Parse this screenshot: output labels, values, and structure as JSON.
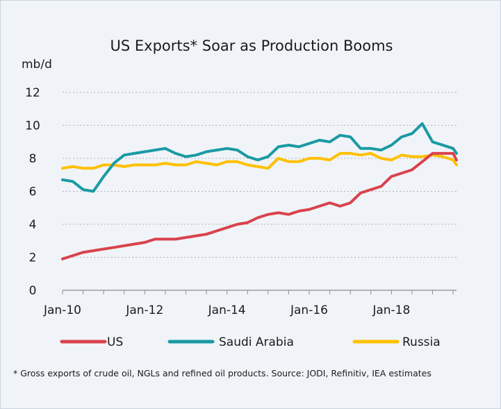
{
  "footnote": "* Gross exports of crude oil, NGLs and refined oil products. Source: JODI, Refinitiv, IEA estimates",
  "chart_data": {
    "type": "line",
    "title": "US Exports* Soar as Production Booms",
    "ylabel": "mb/d",
    "xlabel": "",
    "ylim": [
      0,
      12
    ],
    "yticks": [
      0,
      2,
      4,
      6,
      8,
      10,
      12
    ],
    "xlim": [
      "2010-01",
      "2019-08"
    ],
    "xticks": [
      "Jan-10",
      "Jan-12",
      "Jan-14",
      "Jan-16",
      "Jan-18"
    ],
    "grid": true,
    "legend": "bottom",
    "x": [
      "2010-01",
      "2010-04",
      "2010-07",
      "2010-10",
      "2011-01",
      "2011-04",
      "2011-07",
      "2011-10",
      "2012-01",
      "2012-04",
      "2012-07",
      "2012-10",
      "2013-01",
      "2013-04",
      "2013-07",
      "2013-10",
      "2014-01",
      "2014-04",
      "2014-07",
      "2014-10",
      "2015-01",
      "2015-04",
      "2015-07",
      "2015-10",
      "2016-01",
      "2016-04",
      "2016-07",
      "2016-10",
      "2017-01",
      "2017-04",
      "2017-07",
      "2017-10",
      "2018-01",
      "2018-04",
      "2018-07",
      "2018-10",
      "2019-01",
      "2019-04",
      "2019-07",
      "2019-08"
    ],
    "series": [
      {
        "name": "US",
        "color": "#d9434d",
        "values": [
          1.9,
          2.1,
          2.3,
          2.4,
          2.5,
          2.6,
          2.7,
          2.8,
          2.9,
          3.1,
          3.1,
          3.1,
          3.2,
          3.3,
          3.4,
          3.6,
          3.8,
          4.0,
          4.1,
          4.4,
          4.6,
          4.7,
          4.6,
          4.8,
          4.9,
          5.1,
          5.3,
          5.1,
          5.3,
          5.9,
          6.1,
          6.3,
          6.9,
          7.1,
          7.3,
          7.8,
          8.3,
          8.3,
          8.3,
          7.9
        ]
      },
      {
        "name": "Saudi Arabia",
        "color": "#1a9aa3",
        "values": [
          6.7,
          6.6,
          6.1,
          6.0,
          6.9,
          7.7,
          8.2,
          8.3,
          8.4,
          8.5,
          8.6,
          8.3,
          8.1,
          8.2,
          8.4,
          8.5,
          8.6,
          8.5,
          8.1,
          7.9,
          8.1,
          8.7,
          8.8,
          8.7,
          8.9,
          9.1,
          9.0,
          9.4,
          9.3,
          8.6,
          8.6,
          8.5,
          8.8,
          9.3,
          9.5,
          10.1,
          9.0,
          8.8,
          8.6,
          8.3
        ]
      },
      {
        "name": "Russia",
        "color": "#ffc000",
        "values": [
          7.4,
          7.5,
          7.4,
          7.4,
          7.6,
          7.6,
          7.5,
          7.6,
          7.6,
          7.6,
          7.7,
          7.6,
          7.6,
          7.8,
          7.7,
          7.6,
          7.8,
          7.8,
          7.6,
          7.5,
          7.4,
          8.0,
          7.8,
          7.8,
          8.0,
          8.0,
          7.9,
          8.3,
          8.3,
          8.2,
          8.3,
          8.0,
          7.9,
          8.2,
          8.1,
          8.1,
          8.2,
          8.1,
          7.9,
          7.6
        ]
      }
    ]
  }
}
